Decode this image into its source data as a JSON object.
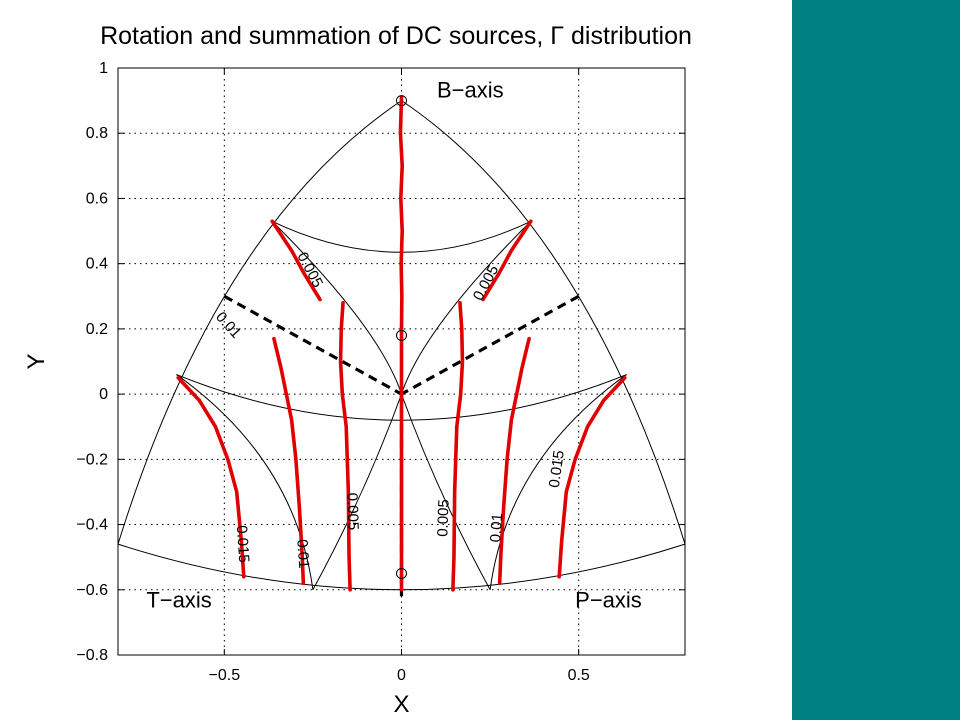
{
  "colors": {
    "background": "#ffffff",
    "side_panel": "#008080",
    "contour": "#e00000",
    "axes_lines": "#000000",
    "grid": "#000000"
  },
  "chart_data": {
    "type": "line",
    "title": "Rotation and summation of DC sources, Γ distribution",
    "xlabel": "X",
    "ylabel": "Y",
    "xlim": [
      -0.8,
      0.8
    ],
    "ylim": [
      -0.8,
      1.0
    ],
    "xticks": [
      -0.5,
      0,
      0.5
    ],
    "xtick_labels": [
      "−0.5",
      "0",
      "0.5"
    ],
    "yticks": [
      -0.8,
      -0.6,
      -0.4,
      -0.2,
      0,
      0.2,
      0.4,
      0.6,
      0.8,
      1.0
    ],
    "ytick_labels": [
      "−0.8",
      "−0.6",
      "−0.4",
      "−0.2",
      "0",
      "0.2",
      "0.4",
      "0.6",
      "0.8",
      "1"
    ],
    "grid": true,
    "annotations": [
      {
        "text": "B−axis",
        "x": 0.1,
        "y": 0.91
      },
      {
        "text": "T−axis",
        "x": -0.72,
        "y": -0.655
      },
      {
        "text": "P−axis",
        "x": 0.49,
        "y": -0.655
      }
    ],
    "series": [
      {
        "level": "0",
        "x": [
          0.0,
          -0.003,
          0.002,
          -0.002,
          0.002,
          -0.001,
          0.001,
          0.0,
          0.0
        ],
        "y": [
          0.91,
          0.8,
          0.7,
          0.6,
          0.5,
          0.4,
          0.3,
          0.2,
          -0.6
        ]
      },
      {
        "level": "0.005",
        "x": [
          -0.165,
          -0.17,
          -0.172,
          -0.167,
          -0.156,
          -0.15,
          -0.148,
          -0.145
        ],
        "y": [
          0.28,
          0.2,
          0.1,
          0.0,
          -0.1,
          -0.3,
          -0.5,
          -0.6
        ]
      },
      {
        "level": "0.005",
        "x": [
          0.165,
          0.17,
          0.172,
          0.167,
          0.156,
          0.15,
          0.148,
          0.145
        ],
        "y": [
          0.28,
          0.2,
          0.1,
          0.0,
          -0.1,
          -0.3,
          -0.5,
          -0.6
        ]
      },
      {
        "level": "0.01",
        "x": [
          -0.36,
          -0.34,
          -0.325,
          -0.31,
          -0.298,
          -0.288,
          -0.28,
          -0.277
        ],
        "y": [
          0.17,
          0.08,
          0.0,
          -0.08,
          -0.2,
          -0.35,
          -0.5,
          -0.58
        ]
      },
      {
        "level": "0.01",
        "x": [
          0.36,
          0.34,
          0.325,
          0.31,
          0.298,
          0.288,
          0.28,
          0.277
        ],
        "y": [
          0.17,
          0.08,
          0.0,
          -0.08,
          -0.2,
          -0.35,
          -0.5,
          -0.58
        ]
      },
      {
        "level": "0.015",
        "x": [
          -0.63,
          -0.57,
          -0.525,
          -0.49,
          -0.465,
          -0.452,
          -0.445
        ],
        "y": [
          0.05,
          -0.02,
          -0.1,
          -0.2,
          -0.3,
          -0.45,
          -0.56
        ]
      },
      {
        "level": "0.015",
        "x": [
          0.63,
          0.57,
          0.525,
          0.49,
          0.465,
          0.452,
          0.445
        ],
        "y": [
          0.05,
          -0.02,
          -0.1,
          -0.2,
          -0.3,
          -0.45,
          -0.56
        ]
      },
      {
        "level": "0.005",
        "x": [
          -0.365,
          -0.31,
          -0.275,
          -0.23
        ],
        "y": [
          0.53,
          0.44,
          0.37,
          0.29
        ]
      },
      {
        "level": "0.005",
        "x": [
          0.365,
          0.31,
          0.275,
          0.23
        ],
        "y": [
          0.53,
          0.44,
          0.37,
          0.29
        ]
      }
    ],
    "contour_labels": [
      {
        "text": "0.005",
        "x": -0.26,
        "y": 0.38,
        "angle": 62
      },
      {
        "text": "0.005",
        "x": 0.24,
        "y": 0.34,
        "angle": -62
      },
      {
        "text": "0.01",
        "x": -0.49,
        "y": 0.21,
        "angle": 48
      },
      {
        "text": "0.015",
        "x": -0.45,
        "y": -0.46,
        "angle": 86
      },
      {
        "text": "0.01",
        "x": -0.28,
        "y": -0.49,
        "angle": 86
      },
      {
        "text": "0.005",
        "x": -0.14,
        "y": -0.36,
        "angle": 88
      },
      {
        "text": "0.005",
        "x": 0.12,
        "y": -0.38,
        "angle": -88
      },
      {
        "text": "0.01",
        "x": 0.27,
        "y": -0.41,
        "angle": -86
      },
      {
        "text": "0.015",
        "x": 0.44,
        "y": -0.23,
        "angle": -82
      }
    ],
    "markers": [
      {
        "x": 0.0,
        "y": 0.9
      },
      {
        "x": 0.0,
        "y": 0.18
      },
      {
        "x": 0.0,
        "y": -0.55
      }
    ]
  }
}
